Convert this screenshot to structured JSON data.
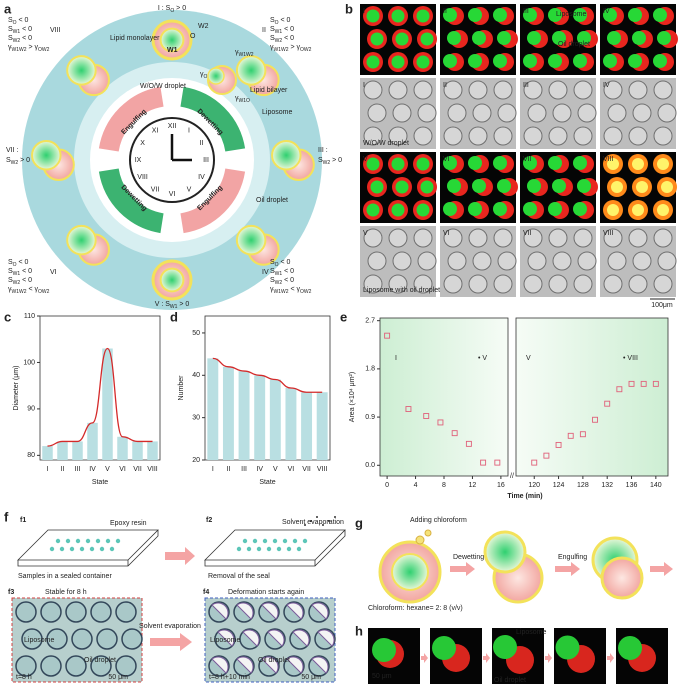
{
  "panel_a": {
    "label": "a",
    "top": [
      "I : S",
      "O",
      " > 0"
    ],
    "bottom": [
      "V : S",
      "W1",
      " > 0"
    ],
    "left_state": "VII :",
    "left": [
      "S",
      "W2",
      " > 0"
    ],
    "right_state": "III :",
    "right": [
      "S",
      "W2",
      " > 0"
    ],
    "tl": {
      "state": "VIII",
      "conds": [
        [
          "S",
          "O",
          " < 0"
        ],
        [
          "S",
          "W1",
          " < 0"
        ],
        [
          "S",
          "W2",
          " < 0"
        ],
        [
          "γ",
          "W1W2",
          " > γ",
          "OW2"
        ]
      ]
    },
    "tr": {
      "state": "II",
      "conds": [
        [
          "S",
          "O",
          " < 0"
        ],
        [
          "S",
          "W1",
          " < 0"
        ],
        [
          "S",
          "W2",
          " < 0"
        ],
        [
          "γ",
          "W1W2",
          " > γ",
          "OW2"
        ]
      ]
    },
    "bl": {
      "state": "VI",
      "conds": [
        [
          "S",
          "O",
          " < 0"
        ],
        [
          "S",
          "W1",
          " < 0"
        ],
        [
          "S",
          "W2",
          " < 0"
        ],
        [
          "γ",
          "W1W2",
          " < γ",
          "OW2"
        ]
      ]
    },
    "br": {
      "state": "IV",
      "conds": [
        [
          "S",
          "O",
          " < 0"
        ],
        [
          "S",
          "W1",
          " < 0"
        ],
        [
          "S",
          "W2",
          " < 0"
        ],
        [
          "γ",
          "W1W2",
          " < γ",
          "OW2"
        ]
      ]
    },
    "labels": {
      "lipid_monolayer": "Lipid monolayer",
      "w2": "W2",
      "w1": "W1",
      "o": "O",
      "wow": "W/O/W droplet",
      "bilayer": "Lipid bilayer",
      "liposome": "Liposome",
      "oil": "Oil droplet"
    },
    "gammas": [
      [
        "γ",
        "W1W2"
      ],
      [
        "γ",
        "OW2"
      ],
      [
        "γ",
        "W1O"
      ]
    ],
    "arrows": [
      "Engulfing",
      "Dewetting",
      "Dewetting",
      "Engulfing"
    ],
    "clock": [
      "XII",
      "I",
      "II",
      "III",
      "IV",
      "V",
      "VI",
      "VII",
      "VIII",
      "IX",
      "X",
      "XI"
    ]
  },
  "panel_b": {
    "label": "b",
    "numerals": [
      "I",
      "II",
      "III",
      "IV",
      "V",
      "VI",
      "VII",
      "VIII"
    ],
    "liposome": "Liposome",
    "oil": "Oil droplet",
    "wow": "W/O/W droplet",
    "lipo_oil": "Liposome with oil droplet",
    "scale": "100μm"
  },
  "chart_data": [
    {
      "type": "bar",
      "label": "c",
      "y_label": "Diameter (μm)",
      "x_label": "State",
      "categories": [
        "I",
        "II",
        "III",
        "IV",
        "V",
        "VI",
        "VII",
        "VIII"
      ],
      "values": [
        82,
        83,
        83,
        87,
        103,
        84,
        83,
        83
      ],
      "color": "#b9dfe2",
      "line_color": "#d42a2a",
      "ylim": [
        79,
        110
      ],
      "yticks": [
        80,
        90,
        100,
        110
      ]
    },
    {
      "type": "bar",
      "label": "d",
      "y_label": "Number",
      "x_label": "State",
      "categories": [
        "I",
        "II",
        "III",
        "IV",
        "V",
        "VI",
        "VII",
        "VIII"
      ],
      "values": [
        44,
        42,
        41,
        40,
        39,
        37,
        36,
        36
      ],
      "color": "#b9dfe2",
      "line_color": "#d42a2a",
      "ylim": [
        20,
        54
      ],
      "yticks": [
        20,
        30,
        40,
        50
      ]
    },
    {
      "type": "scatter",
      "label": "e",
      "y_label": "Area (×10⁴ μm²)",
      "x_label": "Time (min)",
      "color": "#e0607a",
      "ylim": [
        -0.2,
        2.75
      ],
      "yticks": [
        {
          "value": 0,
          "label": "0.0"
        },
        0.9,
        1.8,
        2.7
      ],
      "annotations": [
        "I",
        "• V",
        "V",
        "• VIII"
      ],
      "segments": [
        {
          "xlim": [
            -1,
            17
          ],
          "xticks": [
            0,
            4,
            8,
            12,
            16
          ],
          "x": [
            0,
            3,
            5.5,
            7.5,
            9.5,
            11.5,
            13.5,
            15.5
          ],
          "values": [
            2.42,
            1.05,
            0.92,
            0.8,
            0.6,
            0.4,
            0.05,
            0.05
          ]
        },
        {
          "xlim": [
            117,
            142
          ],
          "xticks": [
            120,
            124,
            128,
            132,
            136,
            140
          ],
          "x": [
            120,
            122,
            124,
            126,
            128,
            130,
            132,
            134,
            136,
            138,
            140
          ],
          "values": [
            0.05,
            0.18,
            0.38,
            0.55,
            0.58,
            0.85,
            1.15,
            1.42,
            1.52,
            1.52,
            1.52
          ]
        }
      ]
    }
  ],
  "panel_f": {
    "label": "f",
    "f1": "f1",
    "f2": "f2",
    "f3": "f3",
    "f4": "f4",
    "epoxy": "Epoxy resin",
    "solvent_evap": "Solvent evaporation",
    "sealed": "Samples in a sealed container",
    "removal": "Removal of the seal",
    "stable": "Stable for 8 h",
    "deform": "Deformation starts again",
    "solvent_evap2": "Solvent evaporation",
    "lipo1": "Liposome",
    "oil1": "Oil droplet",
    "lipo2": "Liposome",
    "oil2": "Oil droplet",
    "t1": "t=8 h",
    "t2": "t=8 h+10 min",
    "scale1": "50 μm",
    "scale2": "50 μm"
  },
  "panel_g": {
    "label": "g",
    "adding": "Adding chloroform",
    "dewetting": "Dewetting",
    "engulfing": "Engulfing",
    "ratio": "Chloroform: hexane= 2: 8 (v/v)"
  },
  "panel_h": {
    "label": "h",
    "liposome": "Liposome",
    "oil": "Oil droplet",
    "scale": "50 μm"
  }
}
